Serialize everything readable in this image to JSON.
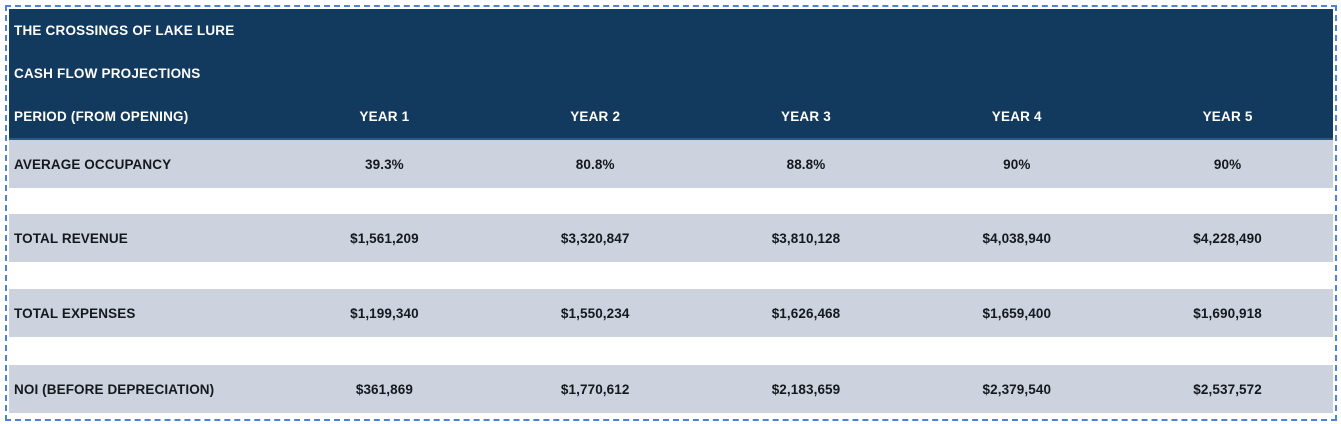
{
  "table": {
    "title": "THE CROSSINGS OF LAKE LURE",
    "subtitle": "CASH FLOW PROJECTIONS",
    "period_label": "PERIOD (FROM OPENING)",
    "columns": [
      "YEAR 1",
      "YEAR 2",
      "YEAR 3",
      "YEAR 4",
      "YEAR 5"
    ],
    "rows": [
      {
        "label": "AVERAGE OCCUPANCY",
        "values": [
          "39.3%",
          "80.8%",
          "88.8%",
          "90%",
          "90%"
        ]
      },
      {
        "label": "TOTAL REVENUE",
        "values": [
          "$1,561,209",
          "$3,320,847",
          "$3,810,128",
          "$4,038,940",
          "$4,228,490"
        ]
      },
      {
        "label": "TOTAL EXPENSES",
        "values": [
          "$1,199,340",
          "$1,550,234",
          "$1,626,468",
          "$1,659,400",
          "$1,690,918"
        ]
      },
      {
        "label": "NOI (BEFORE DEPRECIATION)",
        "values": [
          "$361,869",
          "$1,770,612",
          "$2,183,659",
          "$2,379,540",
          "$2,537,572"
        ]
      }
    ]
  },
  "colors": {
    "header_bg": "#12395e",
    "header_divider": "#2d5a85",
    "header_text": "#ffffff",
    "row_bg": "#ccd3de",
    "row_text": "#15181d",
    "selection_border": "#4e82d6",
    "page_bg": "#ffffff"
  }
}
